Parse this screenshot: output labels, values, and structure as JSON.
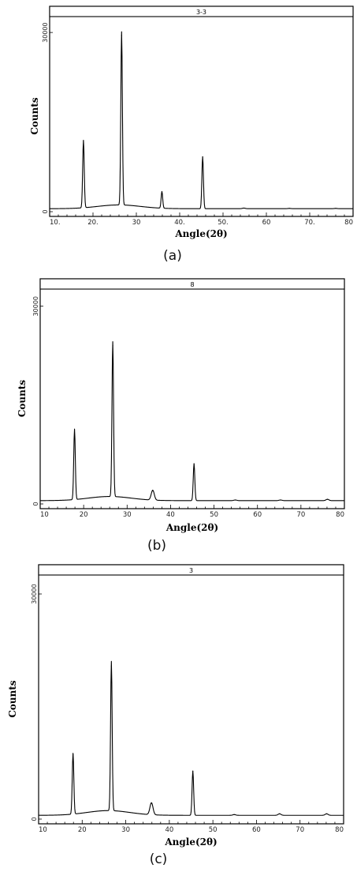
{
  "chart_data": [
    {
      "type": "line",
      "panel_label": "3-3",
      "caption": "(a)",
      "xlabel": "Angle(2θ)",
      "ylabel": "Counts",
      "xlim": [
        10,
        80
      ],
      "ylim": [
        0,
        32000
      ],
      "x_ticks": [
        "10.",
        "20.",
        "30",
        "40.",
        "50.",
        "60",
        "70.",
        "80"
      ],
      "y_ticks": [
        {
          "value": 0,
          "label": "0"
        },
        {
          "value": 30000,
          "label": "30000"
        }
      ],
      "baseline": 500,
      "peaks": [
        {
          "x": 17.8,
          "y": 11800
        },
        {
          "x": 26.6,
          "y": 29500
        },
        {
          "x": 35.9,
          "y": 3300
        },
        {
          "x": 45.3,
          "y": 9200
        },
        {
          "x": 54.8,
          "y": 600
        },
        {
          "x": 65.3,
          "y": 550
        },
        {
          "x": 76.0,
          "y": 550
        }
      ]
    },
    {
      "type": "line",
      "panel_label": "8",
      "caption": "(b)",
      "xlabel": "Angle(2θ)",
      "ylabel": "Counts",
      "xlim": [
        10,
        80
      ],
      "ylim": [
        0,
        32000
      ],
      "x_ticks": [
        "10",
        "20",
        "30",
        "40",
        "50",
        "60",
        "70",
        "80"
      ],
      "y_ticks": [
        {
          "value": 0,
          "label": "0"
        },
        {
          "value": 30000,
          "label": "30000"
        }
      ],
      "baseline": 500,
      "peaks": [
        {
          "x": 17.9,
          "y": 11200
        },
        {
          "x": 26.7,
          "y": 24000
        },
        {
          "x": 35.9,
          "y": 2000
        },
        {
          "x": 45.4,
          "y": 6100
        },
        {
          "x": 54.9,
          "y": 600
        },
        {
          "x": 65.3,
          "y": 600
        },
        {
          "x": 76.1,
          "y": 700
        }
      ]
    },
    {
      "type": "line",
      "panel_label": "3",
      "caption": "(c)",
      "xlabel": "Angle(2θ)",
      "ylabel": "Counts",
      "xlim": [
        10,
        80
      ],
      "ylim": [
        0,
        32000
      ],
      "x_ticks": [
        "10",
        "20",
        "30",
        "40",
        "50",
        "60",
        "70",
        "80"
      ],
      "y_ticks": [
        {
          "value": 0,
          "label": "0"
        },
        {
          "value": 30000,
          "label": "30000"
        }
      ],
      "baseline": 500,
      "peaks": [
        {
          "x": 17.9,
          "y": 8600
        },
        {
          "x": 26.7,
          "y": 20400
        },
        {
          "x": 35.9,
          "y": 2100
        },
        {
          "x": 45.4,
          "y": 6400
        },
        {
          "x": 54.9,
          "y": 600
        },
        {
          "x": 65.3,
          "y": 700
        },
        {
          "x": 76.1,
          "y": 700
        }
      ]
    }
  ]
}
